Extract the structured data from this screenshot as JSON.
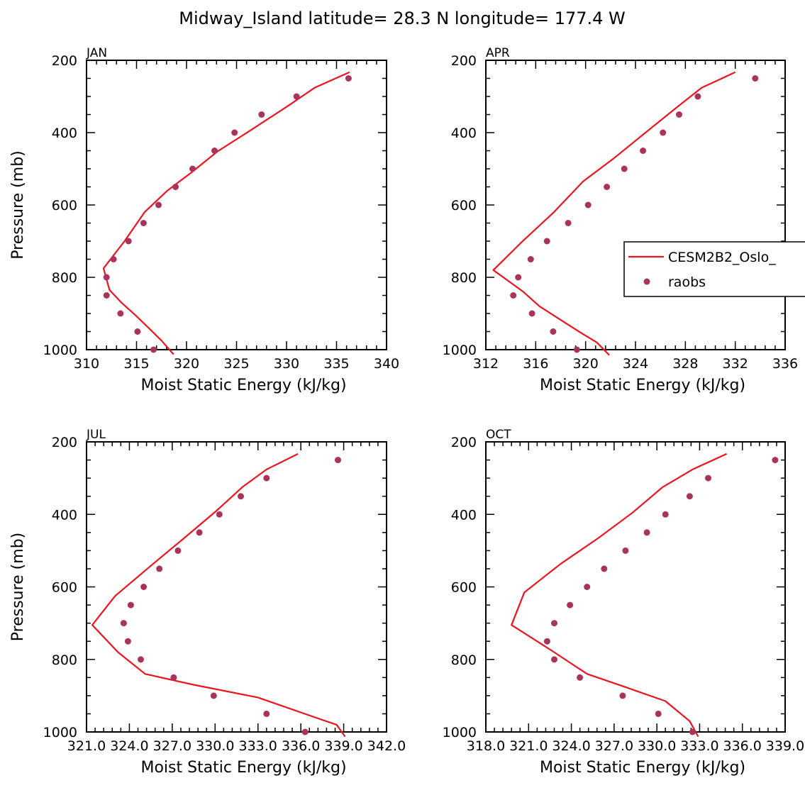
{
  "title": "Midway_Island  latitude= 28.3 N longitude= 177.4 W",
  "colors": {
    "model": "#e8141e",
    "obs": "#a8345e",
    "axis": "#000000"
  },
  "legend": {
    "model_label": "CESM2B2_Oslo_",
    "obs_label": "raobs"
  },
  "chart_data": [
    {
      "type": "line",
      "panel": "JAN",
      "xlabel": "Moist Static Energy (kJ/kg)",
      "ylabel": "Pressure (mb)",
      "xlim": [
        310,
        340
      ],
      "ylim": [
        1000,
        200
      ],
      "x_ticks": [
        310,
        315,
        320,
        325,
        330,
        335,
        340
      ],
      "x_tick_labels": [
        "310",
        "315",
        "320",
        "325",
        "330",
        "335",
        "340"
      ],
      "y_ticks": [
        200,
        400,
        600,
        800,
        1000
      ],
      "y_tick_labels": [
        "200",
        "400",
        "600",
        "800",
        "1000"
      ],
      "series": [
        {
          "name": "CESM2B2_Oslo_",
          "kind": "line",
          "x": [
            336.3,
            332.8,
            330.2,
            326.6,
            323.1,
            320.5,
            318.1,
            315.8,
            313.8,
            311.7,
            312.3,
            313.5,
            314.9,
            316.4,
            317.5,
            318.7
          ],
          "y": [
            233,
            276,
            325,
            390,
            452,
            510,
            560,
            620,
            700,
            775,
            835,
            870,
            905,
            945,
            975,
            1013
          ]
        },
        {
          "name": "raobs",
          "kind": "scatter",
          "x": [
            336.2,
            331.0,
            327.5,
            324.8,
            322.8,
            320.6,
            318.9,
            317.2,
            315.7,
            314.2,
            312.7,
            312.0,
            312.0,
            313.4,
            315.1,
            316.7
          ],
          "y": [
            250,
            300,
            350,
            400,
            450,
            500,
            550,
            600,
            650,
            700,
            750,
            800,
            850,
            900,
            950,
            1000
          ]
        }
      ]
    },
    {
      "type": "line",
      "panel": "APR",
      "xlabel": "Moist Static Energy (kJ/kg)",
      "ylabel": "",
      "xlim": [
        312,
        336
      ],
      "ylim": [
        1000,
        200
      ],
      "x_ticks": [
        312,
        316,
        320,
        324,
        328,
        332,
        336
      ],
      "x_tick_labels": [
        "312",
        "316",
        "320",
        "324",
        "328",
        "332",
        "336"
      ],
      "y_ticks": [
        200,
        400,
        600,
        800,
        1000
      ],
      "y_tick_labels": [
        "200",
        "400",
        "600",
        "800",
        "1000"
      ],
      "series": [
        {
          "name": "CESM2B2_Oslo_",
          "kind": "line",
          "x": [
            332.0,
            329.3,
            327.5,
            324.8,
            322.3,
            319.8,
            317.4,
            314.8,
            312.6,
            315.0,
            316.3,
            318.1,
            319.7,
            320.9,
            321.9
          ],
          "y": [
            233,
            276,
            325,
            400,
            470,
            535,
            622,
            705,
            780,
            840,
            880,
            920,
            955,
            980,
            1015
          ]
        },
        {
          "name": "raobs",
          "kind": "scatter",
          "x": [
            333.6,
            329.0,
            327.5,
            326.2,
            324.6,
            323.1,
            321.7,
            320.2,
            318.6,
            316.9,
            315.6,
            314.6,
            314.2,
            315.7,
            317.4,
            319.3
          ],
          "y": [
            250,
            300,
            350,
            400,
            450,
            500,
            550,
            600,
            650,
            700,
            750,
            800,
            850,
            900,
            950,
            1000
          ]
        }
      ]
    },
    {
      "type": "line",
      "panel": "JUL",
      "xlabel": "Moist Static Energy (kJ/kg)",
      "ylabel": "Pressure (mb)",
      "xlim": [
        321.0,
        342.0
      ],
      "ylim": [
        1000,
        200
      ],
      "x_ticks": [
        321.0,
        324.0,
        327.0,
        330.0,
        333.0,
        336.0,
        339.0,
        342.0
      ],
      "x_tick_labels": [
        "321.0",
        "324.0",
        "327.0",
        "330.0",
        "333.0",
        "336.0",
        "339.0",
        "342.0"
      ],
      "y_ticks": [
        200,
        400,
        600,
        800,
        1000
      ],
      "y_tick_labels": [
        "200",
        "400",
        "600",
        "800",
        "1000"
      ],
      "series": [
        {
          "name": "CESM2B2_Oslo_",
          "kind": "line",
          "x": [
            335.8,
            333.6,
            331.9,
            330.1,
            328.0,
            325.7,
            323.0,
            321.4,
            323.2,
            325.1,
            328.5,
            333.0,
            337.0,
            338.5,
            339.1
          ],
          "y": [
            233,
            276,
            325,
            390,
            460,
            535,
            625,
            705,
            780,
            840,
            870,
            905,
            960,
            980,
            1013
          ]
        },
        {
          "name": "raobs",
          "kind": "scatter",
          "x": [
            338.6,
            333.6,
            331.8,
            330.3,
            328.9,
            327.4,
            326.1,
            325.0,
            324.1,
            323.6,
            323.9,
            324.8,
            327.1,
            329.9,
            333.6,
            336.3
          ],
          "y": [
            250,
            300,
            350,
            400,
            450,
            500,
            550,
            600,
            650,
            700,
            750,
            800,
            850,
            900,
            950,
            1000
          ]
        }
      ]
    },
    {
      "type": "line",
      "panel": "OCT",
      "xlabel": "Moist Static Energy (kJ/kg)",
      "ylabel": "",
      "xlim": [
        318.0,
        339.0
      ],
      "ylim": [
        1000,
        200
      ],
      "x_ticks": [
        318.0,
        321.0,
        324.0,
        327.0,
        330.0,
        333.0,
        336.0,
        339.0
      ],
      "x_tick_labels": [
        "318.0",
        "321.0",
        "324.0",
        "327.0",
        "330.0",
        "333.0",
        "336.0",
        "339.0"
      ],
      "y_ticks": [
        200,
        400,
        600,
        800,
        1000
      ],
      "y_tick_labels": [
        "200",
        "400",
        "600",
        "800",
        "1000"
      ],
      "series": [
        {
          "name": "CESM2B2_Oslo_",
          "kind": "line",
          "x": [
            334.9,
            332.5,
            330.4,
            328.3,
            325.9,
            323.3,
            320.7,
            319.8,
            322.6,
            325.1,
            327.7,
            330.6,
            332.3,
            332.9
          ],
          "y": [
            233,
            276,
            325,
            395,
            465,
            535,
            615,
            705,
            775,
            840,
            875,
            915,
            970,
            1013
          ]
        },
        {
          "name": "raobs",
          "kind": "scatter",
          "x": [
            338.3,
            333.6,
            332.3,
            330.6,
            329.3,
            327.8,
            326.3,
            325.1,
            323.9,
            322.8,
            322.3,
            322.8,
            324.6,
            327.6,
            330.1,
            332.5
          ],
          "y": [
            250,
            300,
            350,
            400,
            450,
            500,
            550,
            600,
            650,
            700,
            750,
            800,
            850,
            900,
            950,
            1000
          ]
        }
      ]
    }
  ]
}
